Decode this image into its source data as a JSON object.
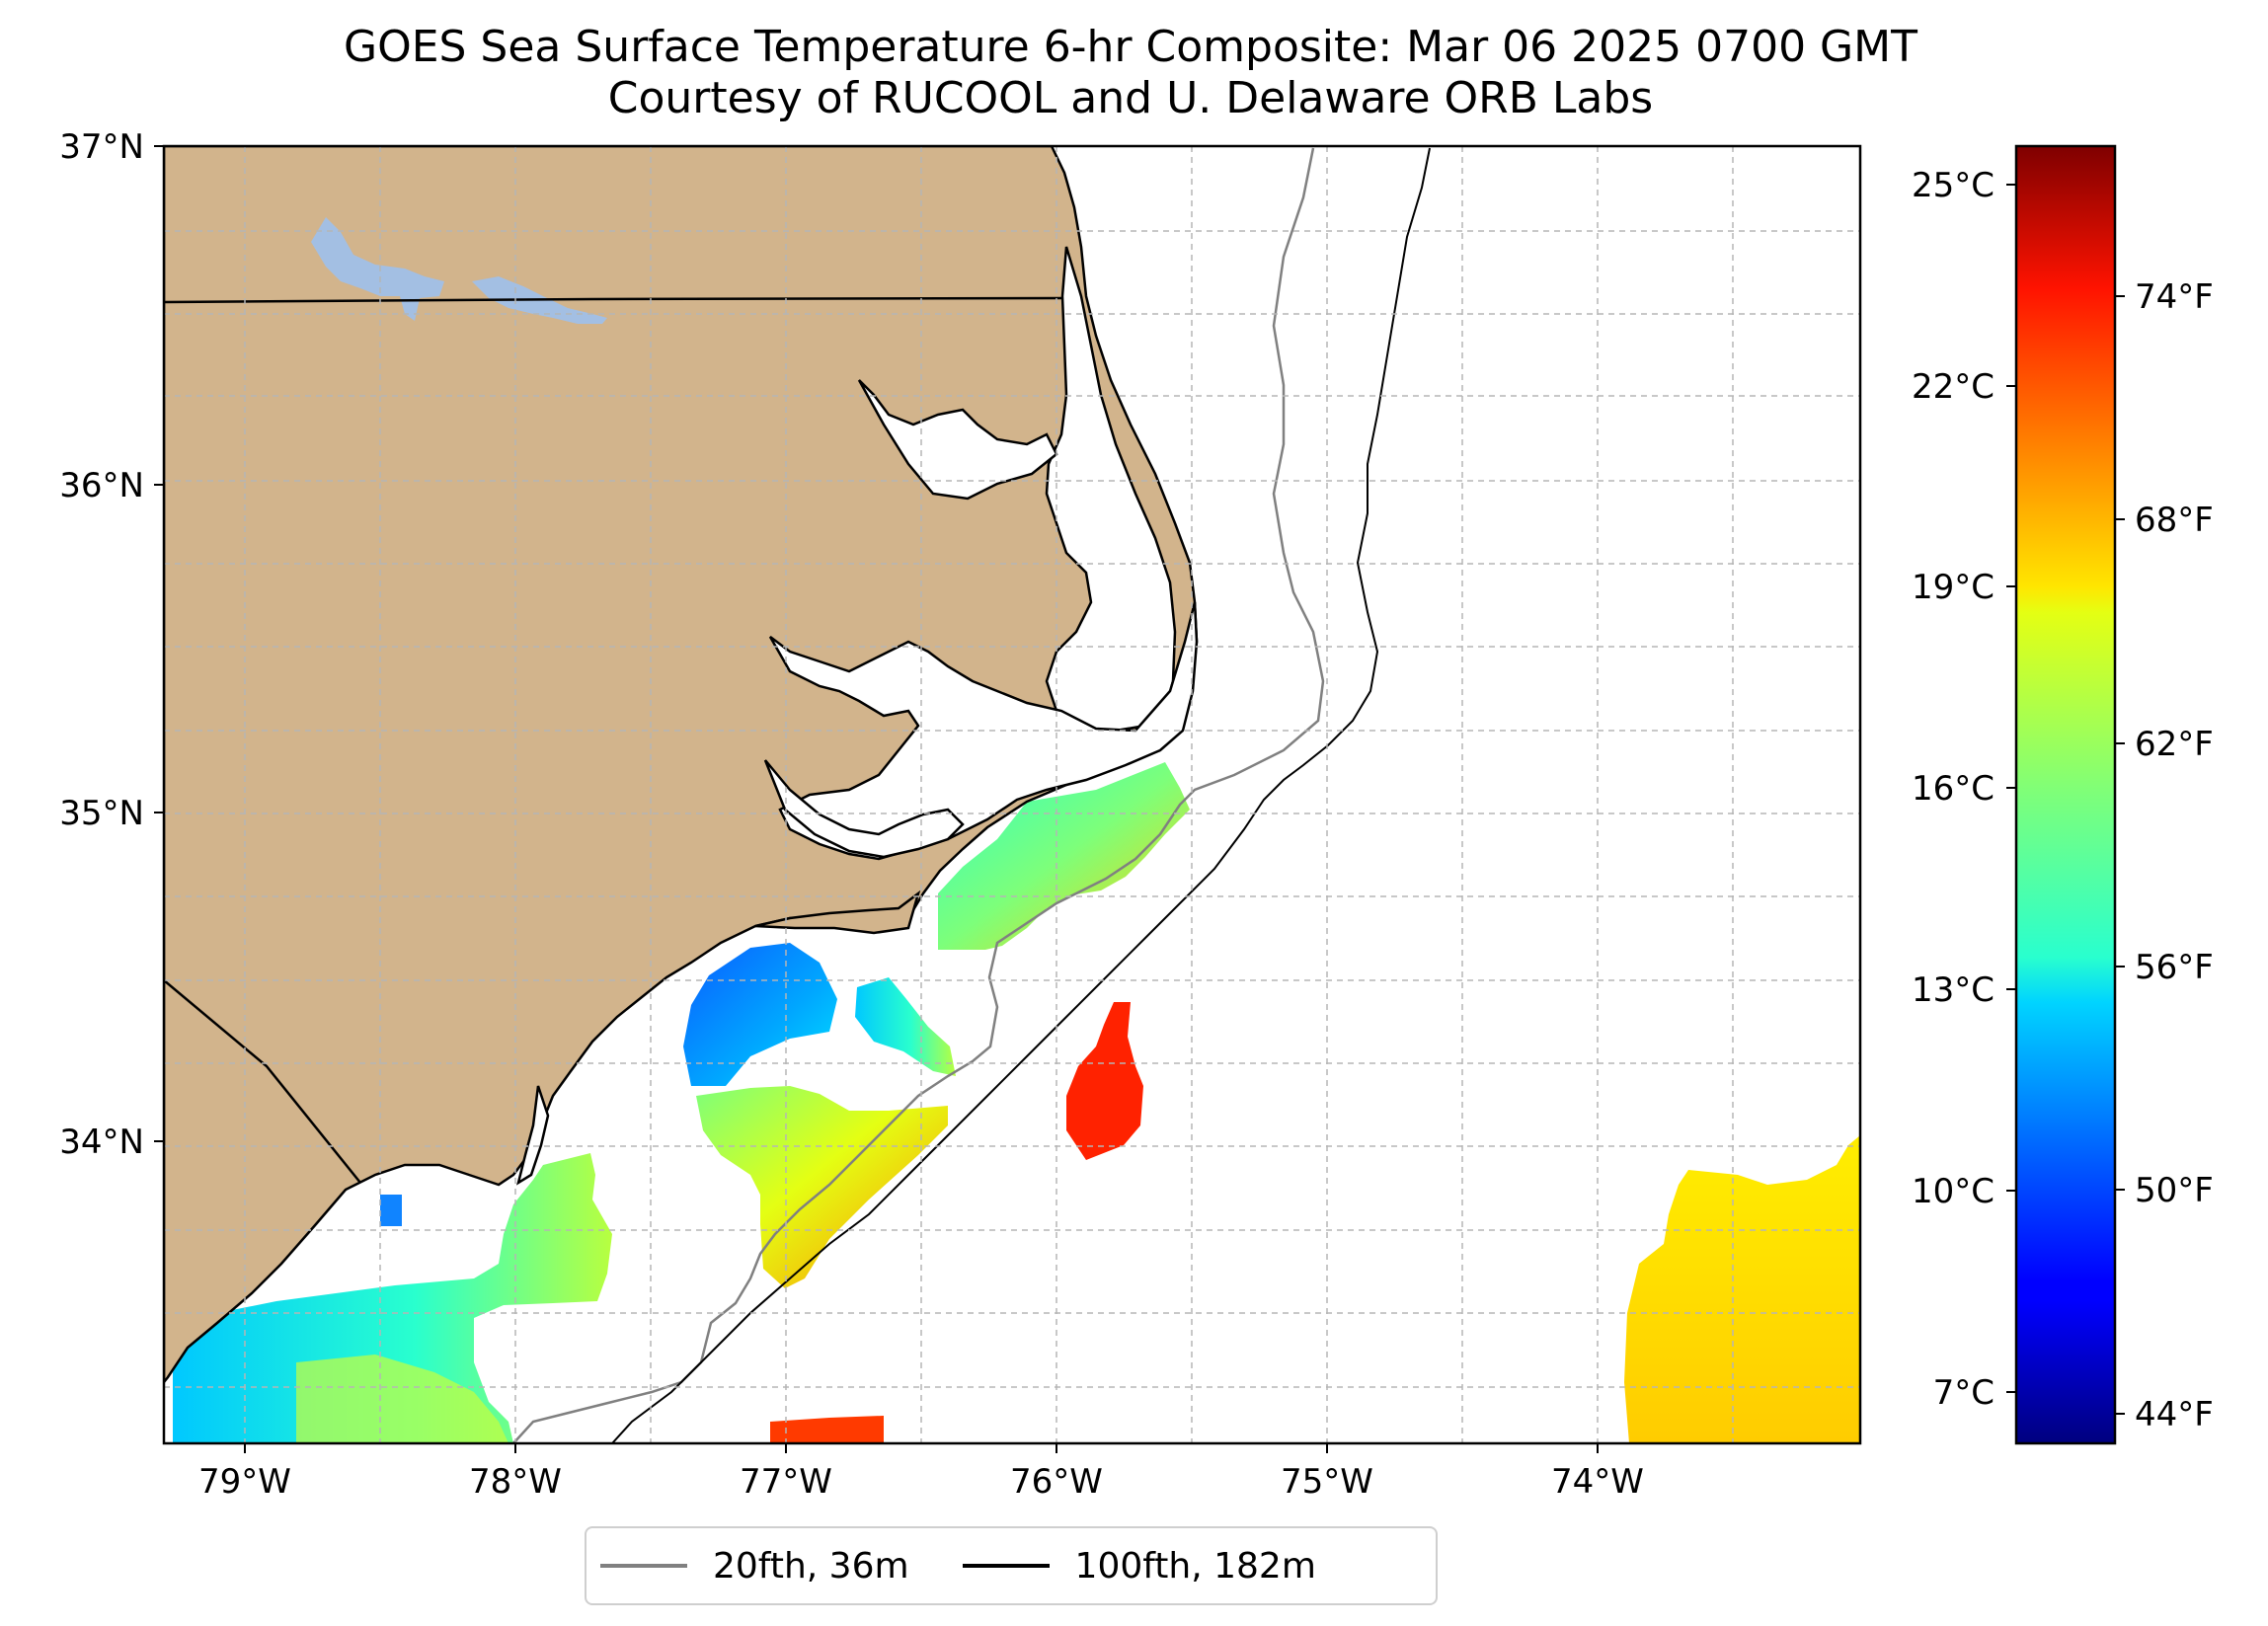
{
  "title": {
    "line1": "GOES Sea Surface Temperature 6-hr Composite: Mar 06 2025 0700 GMT",
    "line2": "Courtesy of RUCOOL and U. Delaware ORB Labs"
  },
  "map": {
    "lat_labels": [
      "37°N",
      "36°N",
      "35°N",
      "34°N"
    ],
    "lon_labels": [
      "79°W",
      "78°W",
      "77°W",
      "76°W",
      "75°W",
      "74°W"
    ],
    "colors": {
      "land": "#d2b48c",
      "lake": "#a3bfe3",
      "grid": "#b5b5b5"
    }
  },
  "colorbar": {
    "celsius_labels": [
      "25°C",
      "22°C",
      "19°C",
      "16°C",
      "13°C",
      "10°C",
      "7°C"
    ],
    "fahrenheit_labels": [
      "74°F",
      "68°F",
      "62°F",
      "56°F",
      "50°F",
      "44°F"
    ],
    "colormap": "jet"
  },
  "legend": {
    "items": [
      {
        "label": "20fth, 36m",
        "color": "#808080"
      },
      {
        "label": "100fth, 182m",
        "color": "#000000"
      }
    ]
  }
}
